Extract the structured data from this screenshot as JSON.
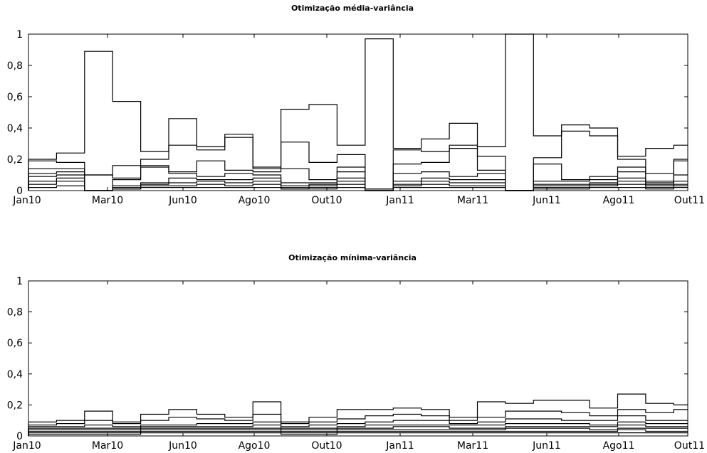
{
  "chart_data": [
    {
      "type": "line",
      "title": "Otimização média-variância",
      "ylim": [
        0,
        1
      ],
      "xlim": [
        0,
        21
      ],
      "yticks": [
        0,
        0.2,
        0.4,
        0.6,
        0.8,
        1
      ],
      "ytick_labels": [
        "0",
        "0,2",
        "0,4",
        "0,6",
        "0,8",
        "1"
      ],
      "xticks": [
        0,
        3,
        6,
        9,
        12,
        15,
        18,
        21
      ],
      "xtick_labels": [
        "Jan10",
        "Mar10",
        "Jun10",
        "Ago10",
        "Out10",
        "Jan11",
        "Mar11",
        "Jun11",
        "Ago11",
        "Out11"
      ],
      "xtick_positions": [
        0,
        2.6,
        5.5,
        8,
        10.5,
        13,
        15.5,
        18,
        20.5,
        23
      ],
      "series": [
        {
          "values": [
            0.2,
            0.24,
            0.89,
            0.57,
            0.25,
            0.46,
            0.28,
            0.36,
            0.15,
            0.52,
            0.55,
            0.29,
            0.97,
            0.27,
            0.33,
            0.43,
            0.28,
            1.0,
            0.35,
            0.42,
            0.4,
            0.22,
            0.27,
            0.29
          ]
        },
        {
          "values": [
            0.19,
            0.18,
            0.1,
            0.16,
            0.2,
            0.29,
            0.26,
            0.34,
            0.14,
            0.31,
            0.18,
            0.23,
            0.01,
            0.26,
            0.25,
            0.29,
            0.22,
            0.0,
            0.21,
            0.38,
            0.35,
            0.2,
            0.11,
            0.2
          ]
        },
        {
          "values": [
            0.14,
            0.14,
            0.1,
            0.08,
            0.16,
            0.12,
            0.19,
            0.13,
            0.12,
            0.14,
            0.07,
            0.15,
            0.01,
            0.17,
            0.18,
            0.27,
            0.13,
            0.0,
            0.17,
            0.07,
            0.09,
            0.15,
            0.06,
            0.19
          ]
        },
        {
          "values": [
            0.11,
            0.12,
            0.0,
            0.07,
            0.15,
            0.11,
            0.09,
            0.11,
            0.1,
            0.05,
            0.05,
            0.12,
            0.0,
            0.11,
            0.12,
            0.09,
            0.11,
            0.0,
            0.06,
            0.06,
            0.07,
            0.12,
            0.05,
            0.1
          ]
        },
        {
          "values": [
            0.09,
            0.1,
            0.0,
            0.03,
            0.05,
            0.08,
            0.07,
            0.07,
            0.08,
            0.03,
            0.04,
            0.08,
            0.0,
            0.06,
            0.08,
            0.07,
            0.07,
            0.0,
            0.04,
            0.04,
            0.05,
            0.08,
            0.04,
            0.06
          ]
        },
        {
          "values": [
            0.06,
            0.08,
            0.0,
            0.02,
            0.04,
            0.05,
            0.06,
            0.05,
            0.06,
            0.02,
            0.03,
            0.06,
            0.0,
            0.04,
            0.06,
            0.05,
            0.05,
            0.0,
            0.03,
            0.03,
            0.04,
            0.06,
            0.03,
            0.04
          ]
        },
        {
          "values": [
            0.04,
            0.06,
            0.0,
            0.01,
            0.03,
            0.03,
            0.04,
            0.03,
            0.04,
            0.01,
            0.02,
            0.04,
            0.0,
            0.03,
            0.04,
            0.03,
            0.03,
            0.0,
            0.02,
            0.02,
            0.03,
            0.04,
            0.02,
            0.03
          ]
        },
        {
          "values": [
            0.02,
            0.03,
            0.0,
            0.01,
            0.02,
            0.02,
            0.02,
            0.02,
            0.02,
            0.01,
            0.01,
            0.02,
            0.0,
            0.02,
            0.02,
            0.02,
            0.02,
            0.0,
            0.01,
            0.01,
            0.02,
            0.02,
            0.01,
            0.02
          ]
        }
      ]
    },
    {
      "type": "line",
      "title": "Otimização mínima-variância",
      "ylim": [
        0,
        1
      ],
      "xlim": [
        0,
        21
      ],
      "yticks": [
        0,
        0.2,
        0.4,
        0.6,
        0.8,
        1
      ],
      "ytick_labels": [
        "0",
        "0,2",
        "0,4",
        "0,6",
        "0,8",
        "1"
      ],
      "xtick_labels": [
        "Jan10",
        "Mar10",
        "Jun10",
        "Ago10",
        "Out10",
        "Jan11",
        "Mar11",
        "Jun11",
        "Ago11",
        "Out11"
      ],
      "series": [
        {
          "values": [
            0.09,
            0.1,
            0.16,
            0.09,
            0.14,
            0.17,
            0.14,
            0.12,
            0.22,
            0.09,
            0.12,
            0.17,
            0.17,
            0.18,
            0.17,
            0.12,
            0.22,
            0.21,
            0.23,
            0.23,
            0.18,
            0.27,
            0.21,
            0.2
          ]
        },
        {
          "values": [
            0.07,
            0.08,
            0.1,
            0.08,
            0.1,
            0.12,
            0.11,
            0.1,
            0.14,
            0.08,
            0.09,
            0.11,
            0.13,
            0.14,
            0.13,
            0.1,
            0.12,
            0.16,
            0.16,
            0.15,
            0.13,
            0.17,
            0.15,
            0.17
          ]
        },
        {
          "values": [
            0.06,
            0.06,
            0.07,
            0.06,
            0.07,
            0.07,
            0.08,
            0.08,
            0.09,
            0.06,
            0.07,
            0.08,
            0.09,
            0.1,
            0.1,
            0.08,
            0.09,
            0.11,
            0.11,
            0.1,
            0.1,
            0.13,
            0.1,
            0.1
          ]
        },
        {
          "values": [
            0.05,
            0.05,
            0.05,
            0.05,
            0.06,
            0.06,
            0.06,
            0.06,
            0.07,
            0.05,
            0.05,
            0.06,
            0.07,
            0.07,
            0.07,
            0.07,
            0.07,
            0.08,
            0.08,
            0.08,
            0.07,
            0.09,
            0.08,
            0.08
          ]
        },
        {
          "values": [
            0.04,
            0.04,
            0.04,
            0.04,
            0.05,
            0.05,
            0.05,
            0.05,
            0.05,
            0.04,
            0.04,
            0.05,
            0.05,
            0.06,
            0.06,
            0.05,
            0.05,
            0.06,
            0.06,
            0.06,
            0.06,
            0.07,
            0.06,
            0.06
          ]
        },
        {
          "values": [
            0.03,
            0.03,
            0.03,
            0.03,
            0.04,
            0.04,
            0.04,
            0.04,
            0.04,
            0.03,
            0.03,
            0.04,
            0.04,
            0.04,
            0.04,
            0.04,
            0.04,
            0.05,
            0.05,
            0.05,
            0.04,
            0.05,
            0.05,
            0.05
          ]
        },
        {
          "values": [
            0.02,
            0.02,
            0.02,
            0.02,
            0.03,
            0.03,
            0.03,
            0.03,
            0.03,
            0.02,
            0.02,
            0.03,
            0.03,
            0.03,
            0.03,
            0.03,
            0.03,
            0.03,
            0.03,
            0.03,
            0.03,
            0.04,
            0.03,
            0.03
          ]
        },
        {
          "values": [
            0.01,
            0.01,
            0.01,
            0.01,
            0.02,
            0.02,
            0.02,
            0.02,
            0.02,
            0.01,
            0.01,
            0.02,
            0.02,
            0.02,
            0.02,
            0.02,
            0.02,
            0.02,
            0.02,
            0.02,
            0.02,
            0.02,
            0.02,
            0.02
          ]
        }
      ]
    }
  ]
}
